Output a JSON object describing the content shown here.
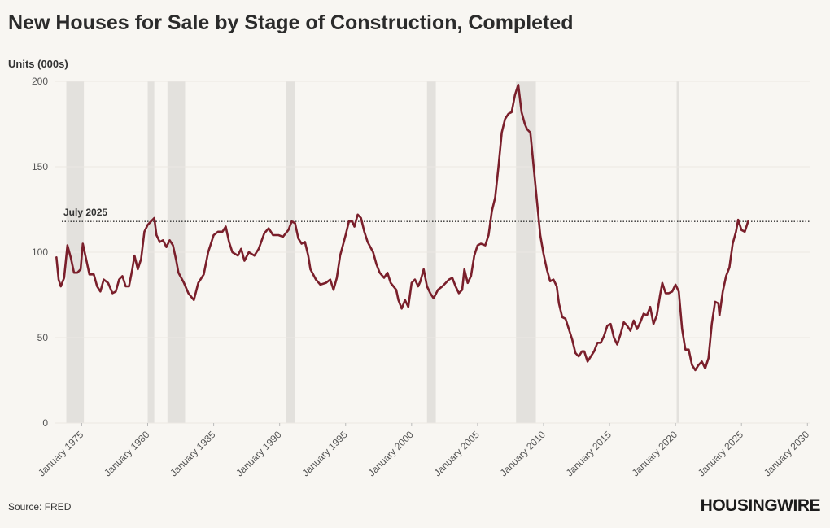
{
  "chart_data": {
    "type": "line",
    "title": "New Houses for Sale by Stage of Construction, Completed",
    "y_label": "Units (000s)",
    "source": "Source: FRED",
    "brand": "HOUSINGWIRE",
    "annotation": {
      "text": "July 2025",
      "value": 118
    },
    "recessions": [
      [
        "1973-11",
        "1975-03"
      ],
      [
        "1980-01",
        "1980-07"
      ],
      [
        "1981-07",
        "1982-11"
      ],
      [
        "1990-07",
        "1991-03"
      ],
      [
        "2001-03",
        "2001-11"
      ],
      [
        "2007-12",
        "2009-06"
      ],
      [
        "2020-02",
        "2020-04"
      ]
    ],
    "xlim": [
      "1973-01",
      "2030-03"
    ],
    "xticks": [
      {
        "value": "1975-01",
        "label": "January 1975"
      },
      {
        "value": "1980-01",
        "label": "January 1980"
      },
      {
        "value": "1985-01",
        "label": "January 1985"
      },
      {
        "value": "1990-01",
        "label": "January 1990"
      },
      {
        "value": "1995-01",
        "label": "January 1995"
      },
      {
        "value": "2000-01",
        "label": "January 2000"
      },
      {
        "value": "2005-01",
        "label": "January 2005"
      },
      {
        "value": "2010-01",
        "label": "January 2010"
      },
      {
        "value": "2015-01",
        "label": "January 2015"
      },
      {
        "value": "2020-01",
        "label": "January 2020"
      },
      {
        "value": "2025-01",
        "label": "January 2025"
      },
      {
        "value": "2030-01",
        "label": "January 2030"
      }
    ],
    "ylim": [
      0,
      200
    ],
    "yticks": [
      0,
      50,
      100,
      150,
      200
    ],
    "grid": true,
    "x": [
      "1973-02",
      "1973-04",
      "1973-06",
      "1973-09",
      "1973-12",
      "1974-03",
      "1974-06",
      "1974-09",
      "1974-12",
      "1975-02",
      "1975-05",
      "1975-08",
      "1975-12",
      "1976-03",
      "1976-06",
      "1976-09",
      "1977-01",
      "1977-05",
      "1977-08",
      "1977-11",
      "1978-02",
      "1978-05",
      "1978-08",
      "1978-11",
      "1979-01",
      "1979-04",
      "1979-07",
      "1979-10",
      "1980-01",
      "1980-04",
      "1980-07",
      "1980-09",
      "1980-12",
      "1981-03",
      "1981-06",
      "1981-09",
      "1981-12",
      "1982-03",
      "1982-05",
      "1982-10",
      "1983-02",
      "1983-07",
      "1983-11",
      "1984-04",
      "1984-08",
      "1985-01",
      "1985-05",
      "1985-09",
      "1985-12",
      "1986-03",
      "1986-06",
      "1986-11",
      "1987-02",
      "1987-05",
      "1987-09",
      "1988-02",
      "1988-06",
      "1988-11",
      "1989-03",
      "1989-07",
      "1989-12",
      "1990-04",
      "1990-09",
      "1990-12",
      "1991-03",
      "1991-06",
      "1991-09",
      "1991-12",
      "1992-03",
      "1992-05",
      "1992-10",
      "1993-02",
      "1993-07",
      "1993-11",
      "1994-02",
      "1994-05",
      "1994-08",
      "1995-01",
      "1995-04",
      "1995-07",
      "1995-09",
      "1995-12",
      "1996-03",
      "1996-06",
      "1996-09",
      "1997-02",
      "1997-05",
      "1997-08",
      "1997-12",
      "1998-03",
      "1998-06",
      "1998-11",
      "1999-01",
      "1999-04",
      "1999-07",
      "1999-10",
      "2000-01",
      "2000-04",
      "2000-07",
      "2000-09",
      "2000-12",
      "2001-03",
      "2001-06",
      "2001-09",
      "2002-01",
      "2002-05",
      "2002-11",
      "2003-02",
      "2003-05",
      "2003-08",
      "2003-11",
      "2004-01",
      "2004-04",
      "2004-07",
      "2004-10",
      "2005-01",
      "2005-04",
      "2005-08",
      "2005-11",
      "2006-02",
      "2006-05",
      "2006-08",
      "2006-11",
      "2007-02",
      "2007-05",
      "2007-08",
      "2007-11",
      "2008-02",
      "2008-05",
      "2008-08",
      "2008-10",
      "2009-01",
      "2009-04",
      "2009-07",
      "2009-10",
      "2010-01",
      "2010-04",
      "2010-07",
      "2010-10",
      "2011-01",
      "2011-03",
      "2011-06",
      "2011-09",
      "2011-12",
      "2012-03",
      "2012-06",
      "2012-09",
      "2012-12",
      "2013-02",
      "2013-05",
      "2013-08",
      "2013-11",
      "2014-02",
      "2014-05",
      "2014-08",
      "2014-11",
      "2015-02",
      "2015-05",
      "2015-08",
      "2015-11",
      "2016-02",
      "2016-05",
      "2016-08",
      "2016-11",
      "2017-02",
      "2017-05",
      "2017-08",
      "2017-11",
      "2018-02",
      "2018-05",
      "2018-08",
      "2018-11",
      "2019-01",
      "2019-04",
      "2019-07",
      "2019-10",
      "2020-01",
      "2020-04",
      "2020-07",
      "2020-10",
      "2021-01",
      "2021-04",
      "2021-07",
      "2021-10",
      "2022-01",
      "2022-04",
      "2022-07",
      "2022-10",
      "2023-01",
      "2023-04",
      "2023-05",
      "2023-08",
      "2023-11",
      "2024-02",
      "2024-05",
      "2024-08",
      "2024-10",
      "2025-01",
      "2025-04",
      "2025-07"
    ],
    "series": [
      {
        "name": "Completed",
        "color": "#7a1f2b",
        "values": [
          97,
          84,
          80,
          85,
          104,
          97,
          88,
          88,
          90,
          105,
          96,
          87,
          87,
          80,
          77,
          84,
          82,
          76,
          77,
          84,
          86,
          80,
          80,
          90,
          98,
          90,
          96,
          112,
          116,
          118,
          120,
          110,
          106,
          107,
          103,
          107,
          104,
          95,
          88,
          82,
          76,
          72,
          82,
          87,
          100,
          110,
          112,
          112,
          115,
          106,
          100,
          98,
          102,
          95,
          100,
          98,
          102,
          111,
          114,
          110,
          110,
          109,
          113,
          118,
          117,
          108,
          105,
          106,
          98,
          90,
          84,
          81,
          82,
          84,
          78,
          85,
          98,
          110,
          118,
          118,
          115,
          122,
          120,
          112,
          106,
          100,
          93,
          88,
          85,
          88,
          82,
          78,
          72,
          67,
          72,
          68,
          82,
          84,
          80,
          83,
          90,
          80,
          76,
          73,
          78,
          80,
          84,
          85,
          80,
          76,
          78,
          90,
          82,
          86,
          98,
          104,
          105,
          104,
          110,
          124,
          132,
          150,
          170,
          178,
          181,
          182,
          192,
          198,
          182,
          175,
          172,
          170,
          150,
          130,
          110,
          99,
          90,
          83,
          84,
          80,
          70,
          62,
          61,
          55,
          49,
          41,
          39,
          42,
          42,
          36,
          39,
          42,
          47,
          47,
          51,
          57,
          58,
          50,
          46,
          52,
          59,
          57,
          54,
          60,
          55,
          59,
          64,
          63,
          68,
          58,
          63,
          75,
          82,
          76,
          76,
          77,
          81,
          77,
          55,
          43,
          43,
          34,
          31,
          34,
          36,
          32,
          38,
          58,
          71,
          70,
          63,
          77,
          86,
          91,
          105,
          112,
          119,
          113,
          112,
          118
        ]
      }
    ]
  }
}
